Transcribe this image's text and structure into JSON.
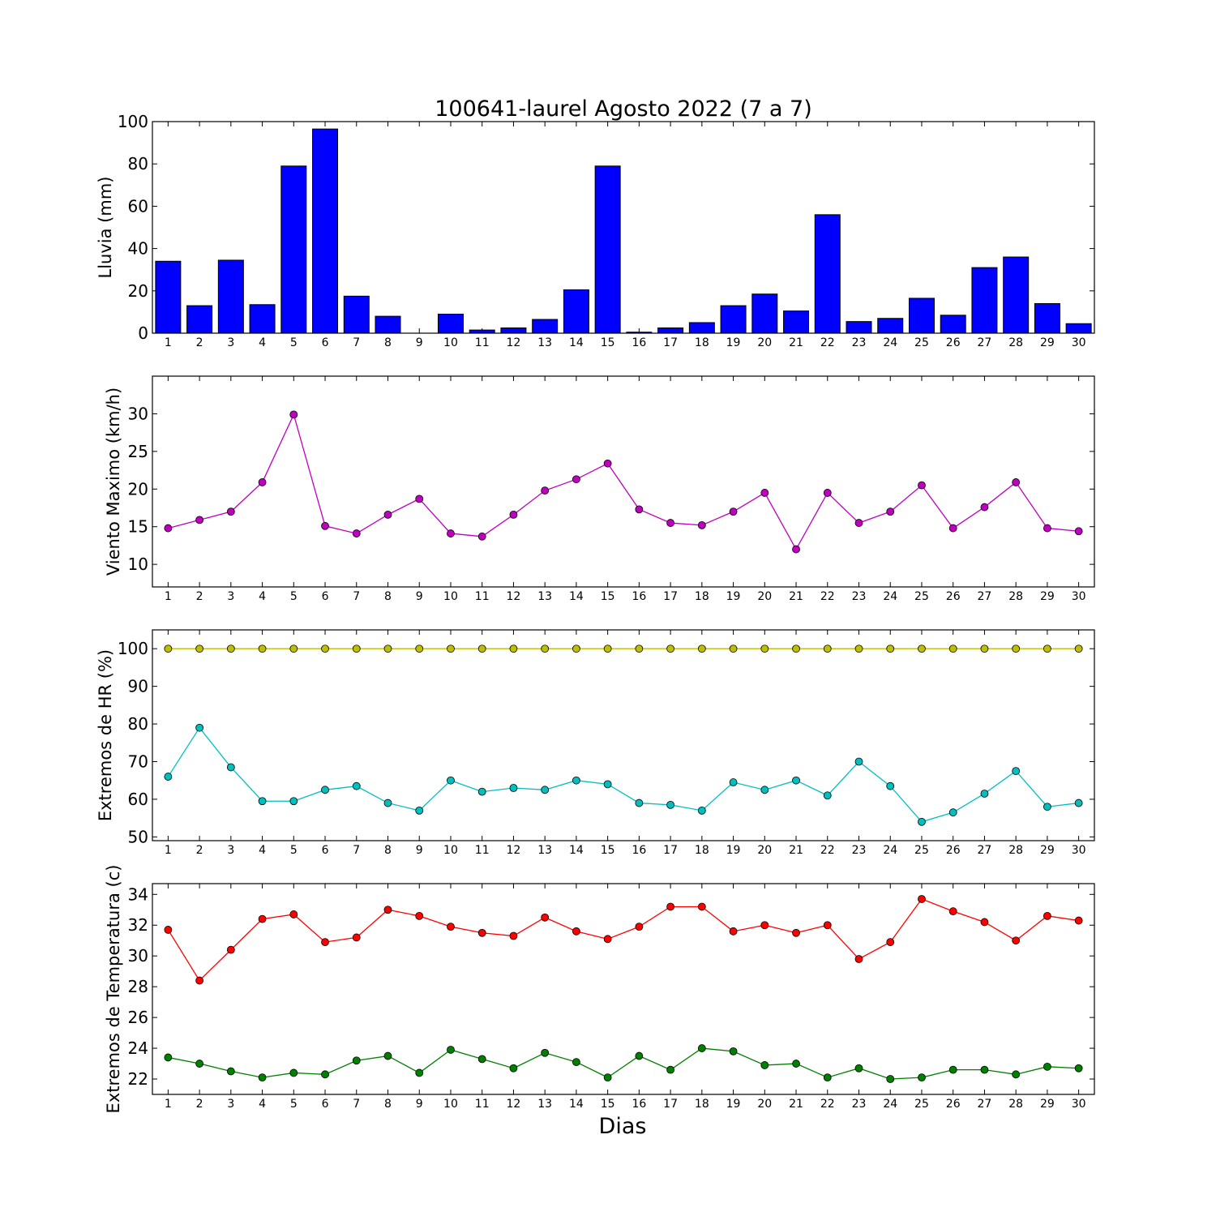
{
  "figure": {
    "title": "100641-laurel Agosto 2022  (7 a 7)",
    "xlabel": "Dias"
  },
  "chart_data": [
    {
      "type": "bar",
      "ylabel": "Lluvia (mm)",
      "categories": [
        "1",
        "2",
        "3",
        "4",
        "5",
        "6",
        "7",
        "8",
        "9",
        "10",
        "11",
        "12",
        "13",
        "14",
        "15",
        "16",
        "17",
        "18",
        "19",
        "20",
        "21",
        "22",
        "23",
        "24",
        "25",
        "26",
        "27",
        "28",
        "29",
        "30"
      ],
      "ylim": [
        0,
        100
      ],
      "yticks": [
        0,
        20,
        40,
        60,
        80,
        100
      ],
      "series": [
        {
          "color": "#0000ff",
          "values": [
            34.0,
            13.0,
            34.5,
            13.5,
            79.0,
            96.5,
            17.5,
            8.0,
            0.0,
            9.0,
            1.5,
            2.5,
            6.5,
            20.5,
            79.0,
            0.5,
            2.5,
            5.0,
            13.0,
            18.5,
            10.5,
            56.0,
            5.5,
            7.0,
            16.5,
            8.5,
            31.0,
            36.0,
            14.0,
            4.5
          ]
        }
      ]
    },
    {
      "type": "line",
      "ylabel": "Viento Maximo (km/h)",
      "x": [
        1,
        2,
        3,
        4,
        5,
        6,
        7,
        8,
        9,
        10,
        11,
        12,
        13,
        14,
        15,
        16,
        17,
        18,
        19,
        20,
        21,
        22,
        23,
        24,
        25,
        26,
        27,
        28,
        29,
        30
      ],
      "ylim": [
        7,
        35
      ],
      "yticks": [
        10,
        15,
        20,
        25,
        30
      ],
      "series": [
        {
          "color": "#bf00bf",
          "values": [
            14.8,
            15.9,
            17.0,
            20.9,
            29.9,
            15.1,
            14.1,
            16.6,
            18.7,
            14.1,
            13.7,
            16.6,
            19.8,
            21.3,
            23.4,
            17.3,
            15.5,
            15.2,
            17.0,
            19.5,
            12.0,
            19.5,
            15.5,
            17.0,
            20.5,
            14.8,
            17.6,
            20.9,
            14.8,
            14.4
          ]
        }
      ]
    },
    {
      "type": "line",
      "ylabel": "Extremos de HR (%)",
      "x": [
        1,
        2,
        3,
        4,
        5,
        6,
        7,
        8,
        9,
        10,
        11,
        12,
        13,
        14,
        15,
        16,
        17,
        18,
        19,
        20,
        21,
        22,
        23,
        24,
        25,
        26,
        27,
        28,
        29,
        30
      ],
      "ylim": [
        49,
        105
      ],
      "yticks": [
        50,
        60,
        70,
        80,
        90,
        100
      ],
      "series": [
        {
          "color": "#bfbf00",
          "values": [
            100,
            100,
            100,
            100,
            100,
            100,
            100,
            100,
            100,
            100,
            100,
            100,
            100,
            100,
            100,
            100,
            100,
            100,
            100,
            100,
            100,
            100,
            100,
            100,
            100,
            100,
            100,
            100,
            100,
            100
          ]
        },
        {
          "color": "#00bfbf",
          "values": [
            66,
            79,
            68.5,
            59.5,
            59.5,
            62.5,
            63.5,
            59,
            57,
            65,
            62,
            63,
            62.5,
            65,
            64,
            59,
            58.5,
            57,
            64.5,
            62.5,
            65,
            61,
            70,
            63.5,
            54,
            56.5,
            61.5,
            67.5,
            58,
            59
          ]
        }
      ]
    },
    {
      "type": "line",
      "ylabel": "Extremos de Temperatura (c)",
      "x": [
        1,
        2,
        3,
        4,
        5,
        6,
        7,
        8,
        9,
        10,
        11,
        12,
        13,
        14,
        15,
        16,
        17,
        18,
        19,
        20,
        21,
        22,
        23,
        24,
        25,
        26,
        27,
        28,
        29,
        30
      ],
      "ylim": [
        21,
        34.7
      ],
      "yticks": [
        22,
        24,
        26,
        28,
        30,
        32,
        34
      ],
      "series": [
        {
          "color": "#ff0000",
          "values": [
            31.7,
            28.4,
            30.4,
            32.4,
            32.7,
            30.9,
            31.2,
            33.0,
            32.6,
            31.9,
            31.5,
            31.3,
            32.5,
            31.6,
            31.1,
            31.9,
            33.2,
            33.2,
            31.6,
            32.0,
            31.5,
            32.0,
            29.8,
            30.9,
            33.7,
            32.9,
            32.2,
            31.0,
            32.6,
            32.3
          ]
        },
        {
          "color": "#008000",
          "values": [
            23.4,
            23.0,
            22.5,
            22.1,
            22.4,
            22.3,
            23.2,
            23.5,
            22.4,
            23.9,
            23.3,
            22.7,
            23.7,
            23.1,
            22.1,
            23.5,
            22.6,
            24.0,
            23.8,
            22.9,
            23.0,
            22.1,
            22.7,
            22.0,
            22.1,
            22.6,
            22.6,
            22.3,
            22.8,
            22.7
          ]
        }
      ]
    }
  ]
}
